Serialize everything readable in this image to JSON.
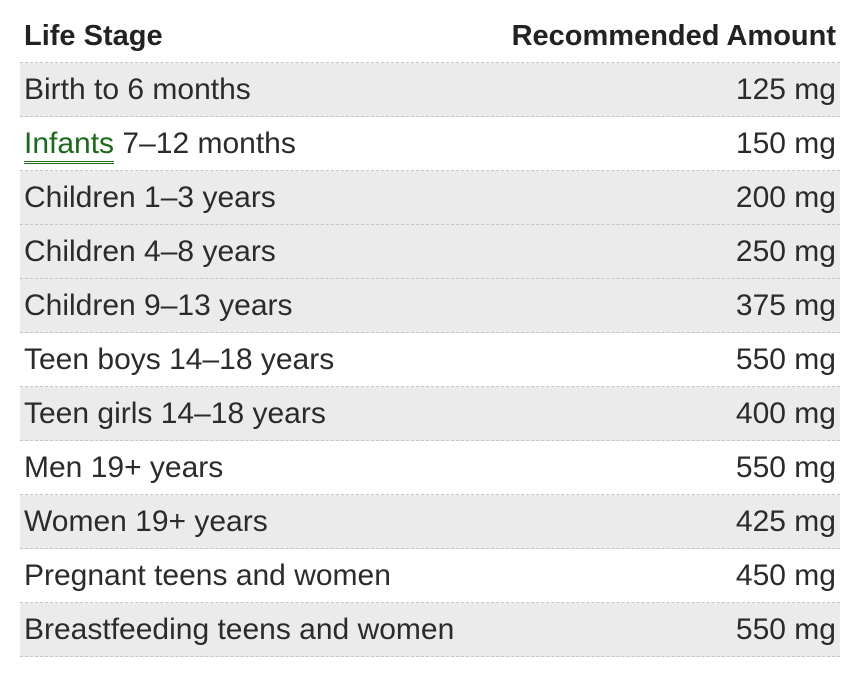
{
  "table": {
    "headers": {
      "life_stage": "Life Stage",
      "amount": "Recommended Amount"
    },
    "rows": [
      {
        "stage": "Birth to 6 months",
        "amount": "125 mg"
      },
      {
        "link": "Infants",
        "stage_rest": " 7–12 months",
        "amount": "150 mg"
      },
      {
        "stage": "Children 1–3 years",
        "amount": "200 mg"
      },
      {
        "stage": "Children 4–8 years",
        "amount": "250 mg"
      },
      {
        "stage": "Children 9–13 years",
        "amount": "375 mg"
      },
      {
        "stage": "Teen boys 14–18 years",
        "amount": "550 mg"
      },
      {
        "stage": "Teen girls 14–18 years",
        "amount": "400 mg"
      },
      {
        "stage": "Men 19+ years",
        "amount": "550 mg"
      },
      {
        "stage": "Women 19+ years",
        "amount": "425 mg"
      },
      {
        "stage": "Pregnant teens and women",
        "amount": "450 mg"
      },
      {
        "stage": "Breastfeeding teens and women",
        "amount": "550 mg"
      }
    ]
  },
  "colors": {
    "shaded_row": "#ebebeb",
    "link": "#1a6a1a",
    "text": "#2b2b2b"
  }
}
